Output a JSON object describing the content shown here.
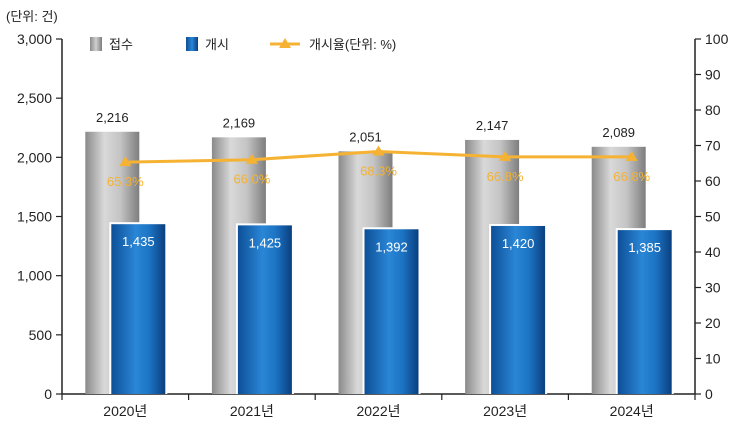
{
  "unit_label": "(단위: 건)",
  "chart_data": {
    "type": "bar",
    "categories": [
      "2020년",
      "2021년",
      "2022년",
      "2023년",
      "2024년"
    ],
    "series": [
      {
        "name": "접수",
        "type": "bar",
        "values": [
          2216,
          2169,
          2051,
          2147,
          2089
        ],
        "labels": [
          "2,216",
          "2,169",
          "2,051",
          "2,147",
          "2,089"
        ],
        "color": "#9a9a9a"
      },
      {
        "name": "개시",
        "type": "bar",
        "values": [
          1435,
          1425,
          1392,
          1420,
          1385
        ],
        "labels": [
          "1,435",
          "1,425",
          "1,392",
          "1,420",
          "1,385"
        ],
        "color": "#1565b0"
      },
      {
        "name": "개시율(단위: %)",
        "type": "line",
        "axis": "right",
        "values": [
          65.3,
          66.0,
          68.3,
          66.8,
          66.8
        ],
        "labels": [
          "65.3%",
          "66.0%",
          "68.3%",
          "66.8%",
          "66.8%"
        ],
        "color": "#f5b233"
      }
    ],
    "y_left": {
      "range": [
        0,
        3000
      ],
      "ticks": [
        0,
        500,
        1000,
        1500,
        2000,
        2500,
        3000
      ],
      "tick_labels": [
        "0",
        "500",
        "1,000",
        "1,500",
        "2,000",
        "2,500",
        "3,000"
      ]
    },
    "y_right": {
      "range": [
        0,
        100
      ],
      "ticks": [
        0,
        10,
        20,
        30,
        40,
        50,
        60,
        70,
        80,
        90,
        100
      ],
      "tick_labels": [
        "0",
        "10",
        "20",
        "30",
        "40",
        "50",
        "60",
        "70",
        "80",
        "90",
        "100"
      ]
    },
    "legend": {
      "placement": "top-left",
      "entries": [
        "접수",
        "개시",
        "개시율(단위: %)"
      ]
    },
    "grid": false
  }
}
